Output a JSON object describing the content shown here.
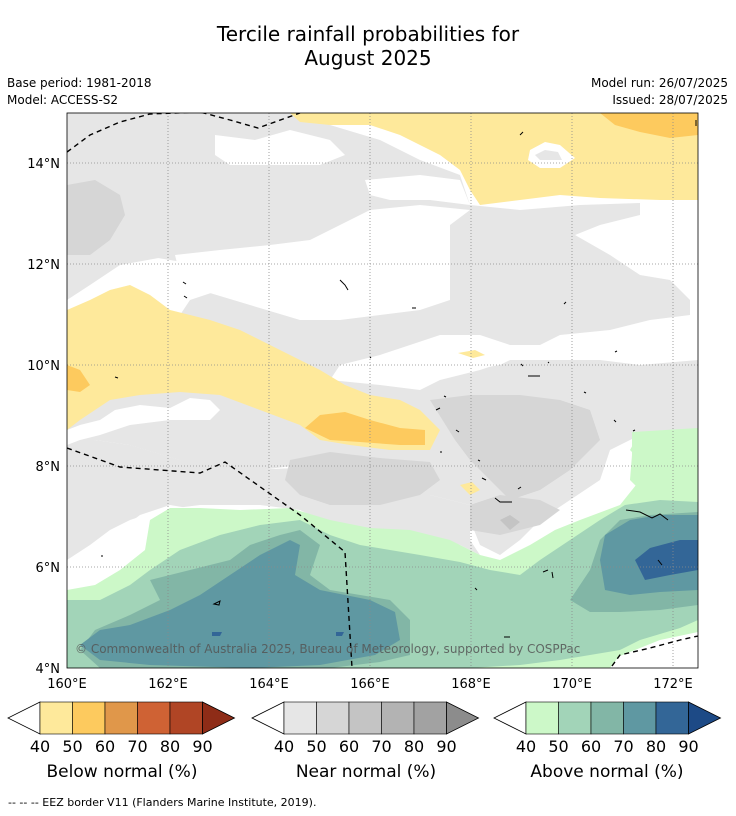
{
  "header": {
    "title_line1": "Tercile rainfall probabilities for",
    "title_line2": "August 2025",
    "base_period": "Base period: 1981-2018",
    "model": "Model: ACCESS-S2",
    "model_run": "Model run: 26/07/2025",
    "issued": "Issued: 28/07/2025"
  },
  "map": {
    "lat_ticks": [
      "14°N",
      "12°N",
      "10°N",
      "8°N",
      "6°N",
      "4°N"
    ],
    "lon_ticks": [
      "160°E",
      "162°E",
      "164°E",
      "166°E",
      "168°E",
      "170°E",
      "172°E"
    ],
    "copyright": "© Commonwealth of Australia 2025, Bureau of Meteorology, supported by COSPPac"
  },
  "legends": [
    {
      "label": "Below normal (%)",
      "ticks": [
        "40",
        "50",
        "60",
        "70",
        "80",
        "90"
      ],
      "colors": [
        "#fee99b",
        "#fdca5e",
        "#e0974a",
        "#cf6234",
        "#b04525",
        "#8e2c17"
      ]
    },
    {
      "label": "Near normal (%)",
      "ticks": [
        "40",
        "50",
        "60",
        "70",
        "80",
        "90"
      ],
      "colors": [
        "#e6e6e6",
        "#d6d6d6",
        "#c4c4c4",
        "#b3b3b3",
        "#a2a2a2",
        "#8c8c8c"
      ]
    },
    {
      "label": "Above normal (%)",
      "ticks": [
        "40",
        "50",
        "60",
        "70",
        "80",
        "90"
      ],
      "colors": [
        "#ccf8c8",
        "#a2d4b8",
        "#82b6a6",
        "#5f98a2",
        "#336697",
        "#1d4a86"
      ]
    }
  ],
  "footnote": "--  --  -- EEZ border V11 (Flanders Marine Institute, 2019)."
}
